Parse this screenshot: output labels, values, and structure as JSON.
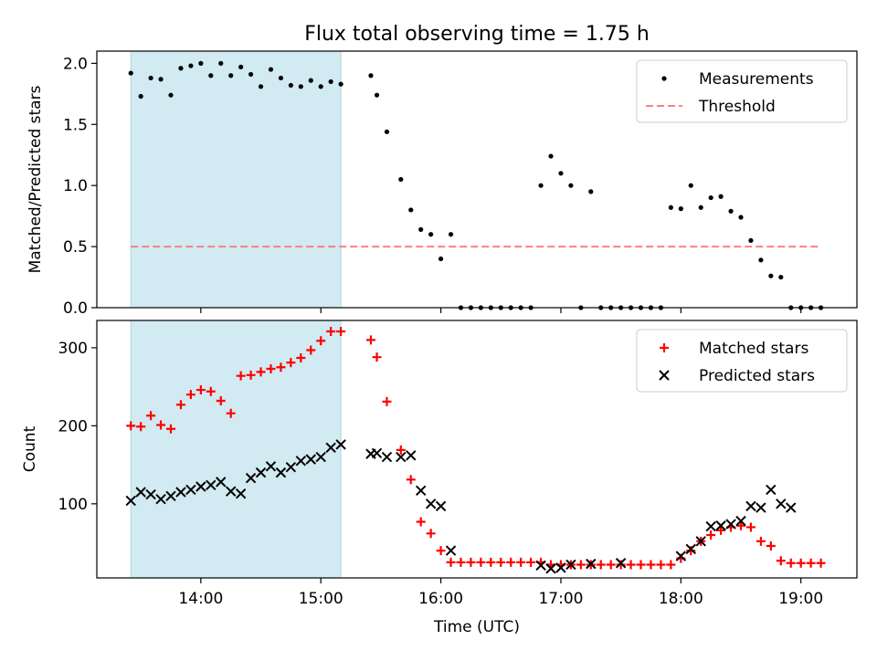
{
  "title": "Flux total observing time = 1.75 h",
  "chart_data": [
    {
      "type": "scatter",
      "ylabel": "Matched/Predicted stars",
      "xlim": [
        "13:08",
        "19:28"
      ],
      "ylim": [
        0,
        2.1
      ],
      "yticks": [
        "0.0",
        "0.5",
        "1.0",
        "1.5",
        "2.0"
      ],
      "shaded_region": {
        "start": "13:25",
        "end": "15:10",
        "color": "#add8e6"
      },
      "legend": {
        "position": "top-right",
        "entries": [
          "Measurements",
          "Threshold"
        ]
      },
      "series": [
        {
          "name": "Measurements",
          "color": "#000000",
          "marker": "dot",
          "x": [
            "13:25",
            "13:30",
            "13:35",
            "13:40",
            "13:45",
            "13:50",
            "13:55",
            "14:00",
            "14:05",
            "14:10",
            "14:15",
            "14:20",
            "14:25",
            "14:30",
            "14:35",
            "14:40",
            "14:45",
            "14:50",
            "14:55",
            "15:00",
            "15:05",
            "15:10",
            "15:25",
            "15:28",
            "15:33",
            "15:40",
            "15:45",
            "15:50",
            "15:55",
            "16:00",
            "16:05",
            "16:10",
            "16:15",
            "16:20",
            "16:25",
            "16:30",
            "16:35",
            "16:40",
            "16:45",
            "16:50",
            "16:55",
            "17:00",
            "17:05",
            "17:10",
            "17:15",
            "17:20",
            "17:25",
            "17:30",
            "17:35",
            "17:40",
            "17:45",
            "17:50",
            "17:55",
            "18:00",
            "18:05",
            "18:10",
            "18:15",
            "18:20",
            "18:25",
            "18:30",
            "18:35",
            "18:40",
            "18:45",
            "18:50",
            "18:55",
            "19:00",
            "19:05",
            "19:10"
          ],
          "y": [
            1.92,
            1.73,
            1.88,
            1.87,
            1.74,
            1.96,
            1.98,
            2.0,
            1.9,
            2.0,
            1.9,
            1.97,
            1.91,
            1.81,
            1.95,
            1.88,
            1.82,
            1.81,
            1.86,
            1.81,
            1.85,
            1.83,
            1.9,
            1.74,
            1.44,
            1.05,
            0.8,
            0.64,
            0.6,
            0.4,
            0.6,
            0.0,
            0.0,
            0.0,
            0.0,
            0.0,
            0.0,
            0.0,
            0.0,
            1.0,
            1.24,
            1.1,
            1.0,
            0.0,
            0.95,
            0.0,
            0.0,
            0.0,
            0.0,
            0.0,
            0.0,
            0.0,
            0.82,
            0.81,
            1.0,
            0.82,
            0.9,
            0.91,
            0.79,
            0.74,
            0.55,
            0.39,
            0.26,
            0.25,
            0.0,
            0.0,
            0.0,
            0.0
          ]
        },
        {
          "name": "Threshold",
          "color": "#ff7f7f",
          "style": "dashed",
          "x": [
            "13:25",
            "19:10"
          ],
          "y": [
            0.5,
            0.5
          ]
        }
      ]
    },
    {
      "type": "scatter",
      "xlabel": "Time (UTC)",
      "ylabel": "Count",
      "xlim": [
        "13:08",
        "19:28"
      ],
      "ylim": [
        5,
        335
      ],
      "yticks": [
        "100",
        "200",
        "300"
      ],
      "xticks": [
        "14:00",
        "15:00",
        "16:00",
        "17:00",
        "18:00",
        "19:00"
      ],
      "shaded_region": {
        "start": "13:25",
        "end": "15:10",
        "color": "#add8e6"
      },
      "legend": {
        "position": "top-right",
        "entries": [
          "Matched stars",
          "Predicted stars"
        ]
      },
      "series": [
        {
          "name": "Matched stars",
          "color": "#ff0000",
          "marker": "plus",
          "x": [
            "13:25",
            "13:30",
            "13:35",
            "13:40",
            "13:45",
            "13:50",
            "13:55",
            "14:00",
            "14:05",
            "14:10",
            "14:15",
            "14:20",
            "14:25",
            "14:30",
            "14:35",
            "14:40",
            "14:45",
            "14:50",
            "14:55",
            "15:00",
            "15:05",
            "15:10",
            "15:25",
            "15:28",
            "15:33",
            "15:40",
            "15:45",
            "15:50",
            "15:55",
            "16:00",
            "16:05",
            "16:10",
            "16:15",
            "16:20",
            "16:25",
            "16:30",
            "16:35",
            "16:40",
            "16:45",
            "16:50",
            "16:55",
            "17:00",
            "17:05",
            "17:10",
            "17:15",
            "17:20",
            "17:25",
            "17:30",
            "17:35",
            "17:40",
            "17:45",
            "17:50",
            "17:55",
            "18:00",
            "18:05",
            "18:10",
            "18:15",
            "18:20",
            "18:25",
            "18:30",
            "18:35",
            "18:40",
            "18:45",
            "18:50",
            "18:55",
            "19:00",
            "19:05",
            "19:10"
          ],
          "y": [
            200,
            199,
            213,
            201,
            196,
            227,
            240,
            246,
            244,
            232,
            216,
            264,
            265,
            269,
            273,
            275,
            281,
            287,
            297,
            309,
            321,
            321,
            310,
            288,
            231,
            169,
            131,
            77,
            62,
            40,
            25,
            25,
            25,
            25,
            25,
            25,
            25,
            25,
            25,
            25,
            22,
            22,
            22,
            22,
            22,
            22,
            22,
            22,
            22,
            22,
            22,
            22,
            22,
            30,
            40,
            52,
            60,
            66,
            70,
            72,
            70,
            52,
            46,
            27,
            24,
            24,
            24,
            24
          ]
        },
        {
          "name": "Predicted stars",
          "color": "#000000",
          "marker": "x",
          "x": [
            "13:25",
            "13:30",
            "13:35",
            "13:40",
            "13:45",
            "13:50",
            "13:55",
            "14:00",
            "14:05",
            "14:10",
            "14:15",
            "14:20",
            "14:25",
            "14:30",
            "14:35",
            "14:40",
            "14:45",
            "14:50",
            "14:55",
            "15:00",
            "15:05",
            "15:10",
            "15:25",
            "15:28",
            "15:33",
            "15:40",
            "15:45",
            "15:50",
            "15:55",
            "16:00",
            "16:05",
            "16:50",
            "16:55",
            "17:00",
            "17:05",
            "17:15",
            "17:30",
            "18:00",
            "18:05",
            "18:10",
            "18:15",
            "18:20",
            "18:25",
            "18:30",
            "18:35",
            "18:40",
            "18:45",
            "18:50",
            "18:55"
          ],
          "y": [
            104,
            115,
            112,
            106,
            110,
            115,
            118,
            122,
            124,
            128,
            116,
            113,
            133,
            140,
            148,
            140,
            147,
            155,
            157,
            160,
            172,
            176,
            164,
            165,
            160,
            160,
            162,
            117,
            100,
            97,
            40,
            21,
            17,
            18,
            22,
            23,
            24,
            33,
            42,
            52,
            71,
            72,
            74,
            78,
            97,
            95,
            118,
            100,
            95
          ]
        }
      ]
    }
  ]
}
